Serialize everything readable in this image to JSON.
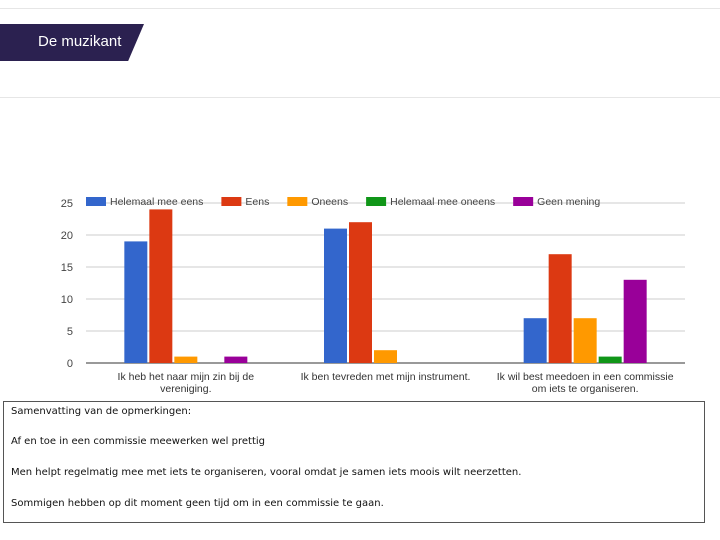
{
  "slide": {
    "title": "De muzikant"
  },
  "colors": {
    "title_bg": "#2b2150",
    "series": [
      "#3366cc",
      "#dc3912",
      "#ff9900",
      "#109618",
      "#990099"
    ]
  },
  "chart_data": {
    "type": "bar",
    "title": "",
    "xlabel": "",
    "ylabel": "",
    "ylim": [
      0,
      25
    ],
    "yticks": [
      "0",
      "5",
      "10",
      "15",
      "20",
      "25"
    ],
    "legend_position": "top",
    "categories": [
      [
        "Ik heb het naar mijn zin bij de",
        "vereniging."
      ],
      [
        "Ik ben tevreden met mijn instrument."
      ],
      [
        "Ik wil best meedoen in een commissie",
        "om iets te organiseren."
      ]
    ],
    "series": [
      {
        "name": "Helemaal mee eens",
        "values": [
          19,
          21,
          7
        ]
      },
      {
        "name": "Eens",
        "values": [
          24,
          22,
          17
        ]
      },
      {
        "name": "Oneens",
        "values": [
          1,
          2,
          7
        ]
      },
      {
        "name": "Helemaal mee oneens",
        "values": [
          0,
          0,
          1
        ]
      },
      {
        "name": "Geen mening",
        "values": [
          1,
          0,
          13
        ]
      }
    ]
  },
  "summary": {
    "heading": "Samenvatting van de opmerkingen:",
    "lines": [
      "Af en toe in een commissie meewerken wel prettig",
      "Men helpt regelmatig mee met iets te organiseren, vooral omdat je samen iets moois wilt neerzetten.",
      "Sommigen hebben op dit moment  geen tijd om in een commissie te gaan."
    ]
  }
}
